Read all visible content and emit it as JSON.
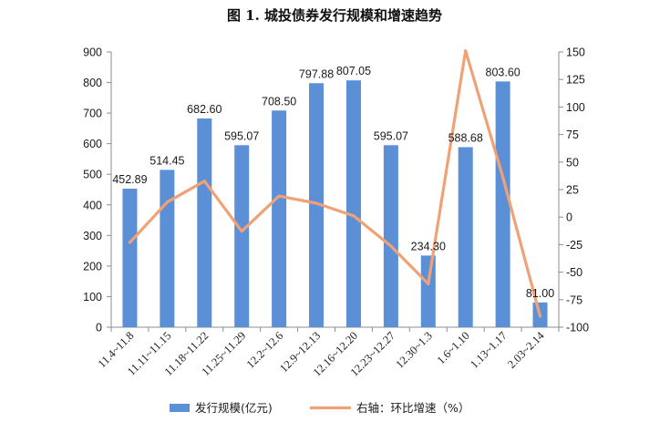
{
  "chart_data": {
    "type": "bar",
    "title": "图 1. 城投债券发行规模和增速趋势",
    "categories": [
      "11.4~11.8",
      "11.11~11.15",
      "11.18~11.22",
      "11.25~11.29",
      "12.2~12.6",
      "12.9~12.13",
      "12.16~12.20",
      "12.23~12.27",
      "12.30~1.3",
      "1.6~1.10",
      "1.13~1.17",
      "2.03~2.14"
    ],
    "series": [
      {
        "name": "发行规模(亿元)",
        "type": "bar",
        "axis": "left",
        "color": "#5b8fd6",
        "values": [
          452.89,
          514.45,
          682.6,
          595.07,
          708.5,
          797.88,
          807.05,
          595.07,
          234.3,
          588.68,
          803.6,
          81.0
        ],
        "labels": [
          "452.89",
          "514.45",
          "682.60",
          "595.07",
          "708.50",
          "797.88",
          "807.05",
          "595.07",
          "234.30",
          "588.68",
          "803.60",
          "81.00"
        ]
      },
      {
        "name": "右轴：环比增速（%）",
        "type": "line",
        "axis": "right",
        "color": "#f0a277",
        "values": [
          -23,
          13.6,
          32.7,
          -12.8,
          19.1,
          12.6,
          1.2,
          -26.3,
          -60.6,
          151.2,
          36.5,
          -89.9
        ]
      }
    ],
    "ylim_left": [
      0,
      900
    ],
    "ylim_right": [
      -100,
      150
    ],
    "yticks_left": [
      "0",
      "100",
      "200",
      "300",
      "400",
      "500",
      "600",
      "700",
      "800",
      "900"
    ],
    "yticks_right": [
      "-100",
      "-75",
      "-50",
      "-25",
      "0",
      "25",
      "50",
      "75",
      "100",
      "125",
      "150"
    ],
    "legend_position": "bottom",
    "grid": false
  }
}
